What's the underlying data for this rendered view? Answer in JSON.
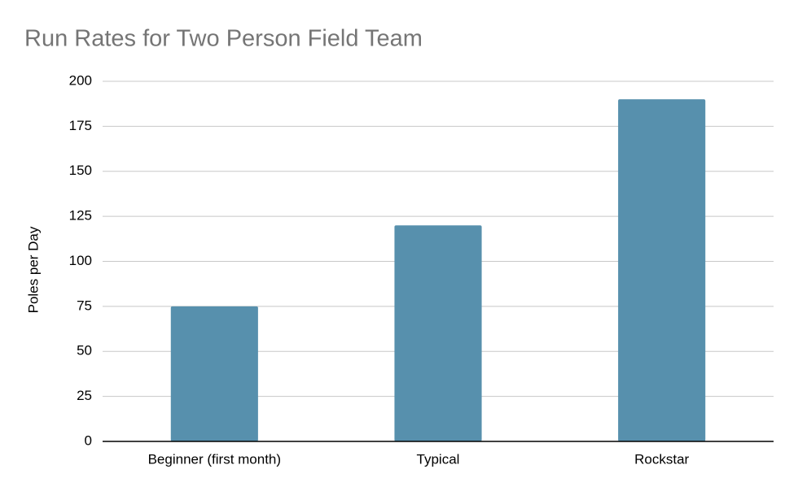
{
  "chart_data": {
    "type": "bar",
    "title": "Run Rates for Two Person Field Team",
    "y_label": "Poles per Day",
    "categories": [
      "Beginner (first month)",
      "Typical",
      "Rockstar"
    ],
    "values": [
      75,
      120,
      190
    ],
    "color": "#5790ad",
    "ylim": [
      0,
      200
    ],
    "yticks": [
      0,
      25,
      50,
      75,
      100,
      125,
      150,
      175,
      200
    ],
    "grid": true
  }
}
